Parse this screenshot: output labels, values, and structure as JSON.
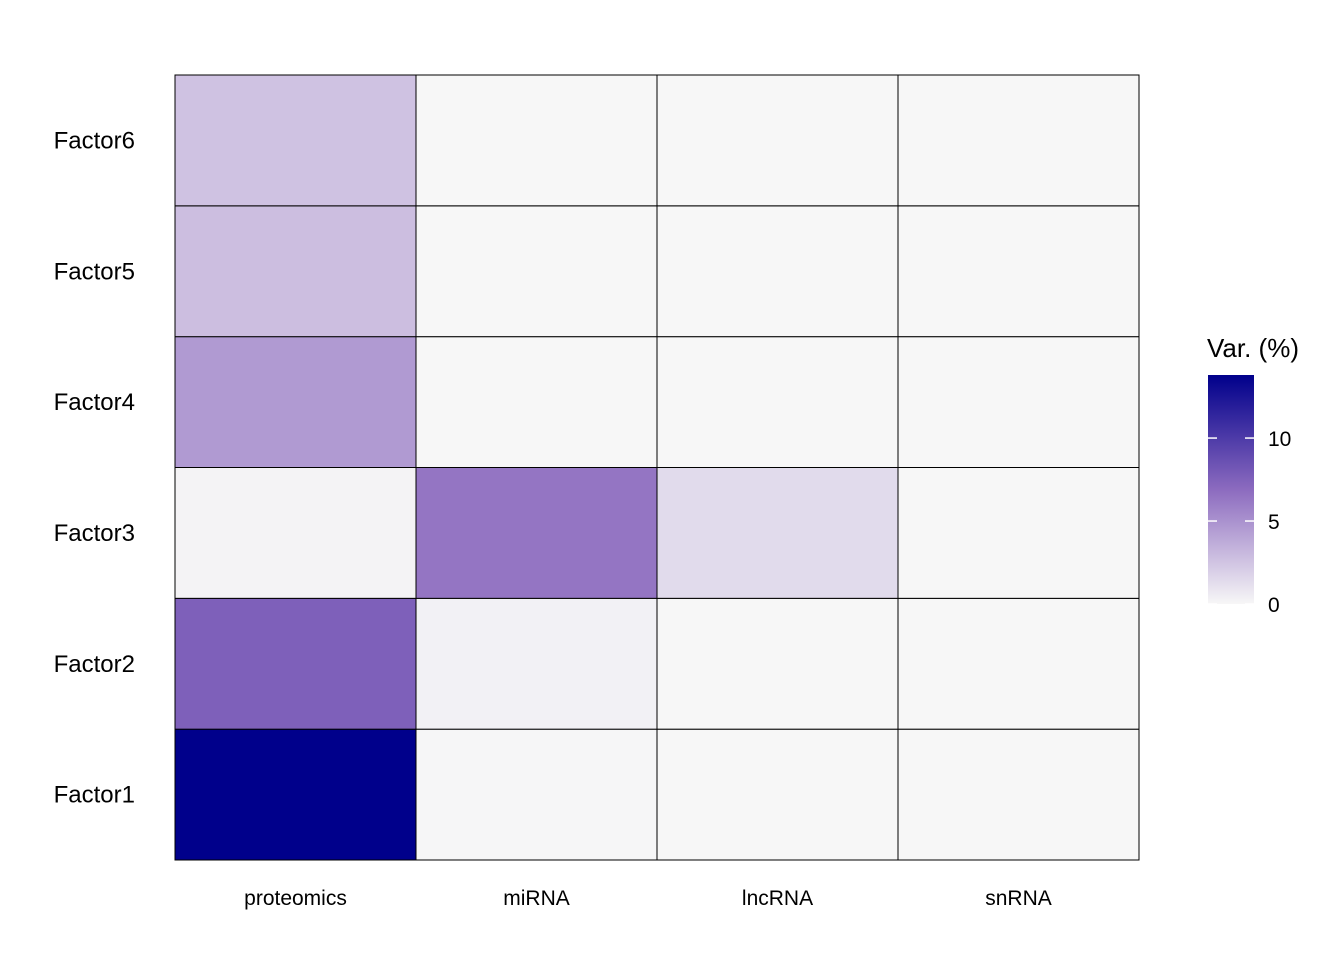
{
  "chart_data": {
    "type": "heatmap",
    "columns": [
      "proteomics",
      "miRNA",
      "lncRNA",
      "snRNA"
    ],
    "rows": [
      "Factor1",
      "Factor2",
      "Factor3",
      "Factor4",
      "Factor5",
      "Factor6"
    ],
    "values": [
      [
        13.8,
        0.05,
        0.02,
        0.02
      ],
      [
        7.6,
        0.3,
        0.02,
        0.02
      ],
      [
        0.2,
        6.4,
        1.4,
        0.02
      ],
      [
        4.6,
        0.02,
        0.02,
        0.02
      ],
      [
        2.8,
        0.02,
        0.02,
        0.02
      ],
      [
        2.6,
        0.02,
        0.02,
        0.02
      ]
    ],
    "value_range": [
      0,
      13.8
    ],
    "color_low": "#f7f7f7",
    "color_mid": "#8c6bbf",
    "color_high": "#00008b",
    "cell_border_color": "#000000",
    "legend": {
      "title": "Var. (%)",
      "ticks": [
        0,
        5,
        10
      ],
      "tick_labels": [
        "0",
        "5",
        "10"
      ],
      "position": "right"
    }
  }
}
